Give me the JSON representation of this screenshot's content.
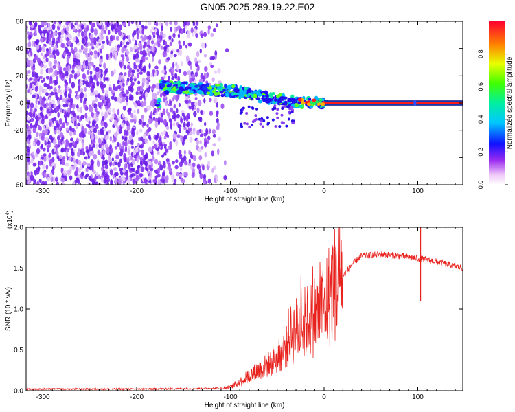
{
  "figure_title": "GN05.2025.289.19.22.E02",
  "chart_data": [
    {
      "type": "heatmap",
      "title": "GN05.2025.289.19.22.E02",
      "xlabel": "Height of straight line (km)",
      "ylabel": "Frequency (Hz)",
      "xlim": [
        -318,
        148
      ],
      "ylim": [
        -60,
        60
      ],
      "x_ticks": [
        -300,
        -200,
        -100,
        0,
        100
      ],
      "x_tick_labels": [
        "-300",
        "-200",
        "-100",
        "0",
        "100"
      ],
      "y_ticks": [
        -60,
        -40,
        -20,
        0,
        20,
        40,
        60
      ],
      "y_tick_labels": [
        "-60",
        "-40",
        "-20",
        "0",
        "20",
        "40",
        "60"
      ],
      "colorbar": {
        "label": "Normalized spectral amplitude",
        "range": [
          0,
          1
        ],
        "ticks": [
          0.0,
          0.2,
          0.4,
          0.6,
          0.8
        ],
        "tick_labels": [
          "0.0",
          "0.2",
          "0.4",
          "0.6",
          "0.8"
        ]
      },
      "ridge_track": [
        {
          "x": -175,
          "y": 12
        },
        {
          "x": -150,
          "y": 11
        },
        {
          "x": -125,
          "y": 10
        },
        {
          "x": -100,
          "y": 9
        },
        {
          "x": -85,
          "y": 8
        },
        {
          "x": -70,
          "y": 5
        },
        {
          "x": -55,
          "y": 3
        },
        {
          "x": -40,
          "y": 1
        },
        {
          "x": -25,
          "y": 1
        },
        {
          "x": -10,
          "y": 1
        },
        {
          "x": 0,
          "y": 0
        },
        {
          "x": 148,
          "y": 0
        }
      ],
      "noise_region_x": [
        -318,
        -110
      ],
      "steady_line": {
        "x_start": 0,
        "x_end": 148,
        "y": 0
      }
    },
    {
      "type": "line",
      "xlabel": "Height of straight line (km)",
      "ylabel": "SNR (10 * v/v)",
      "y_multiplier_label": "(x10",
      "y_multiplier_exponent": "4",
      "xlim": [
        -318,
        148
      ],
      "ylim": [
        0,
        2.0
      ],
      "x_ticks": [
        -300,
        -200,
        -100,
        0,
        100
      ],
      "x_tick_labels": [
        "-300",
        "-200",
        "-100",
        "0",
        "100"
      ],
      "y_ticks": [
        0.0,
        0.5,
        1.0,
        1.5,
        2.0
      ],
      "y_tick_labels": [
        "0.0",
        "0.5",
        "1.0",
        "1.5",
        "2.0"
      ],
      "series": [
        {
          "name": "SNR",
          "color": "#e8231e",
          "x": [
            -318,
            -200,
            -110,
            -100,
            -90,
            -80,
            -70,
            -60,
            -50,
            -40,
            -30,
            -20,
            -10,
            0,
            10,
            20,
            30,
            40,
            60,
            80,
            100,
            110,
            120,
            148
          ],
          "y": [
            0.02,
            0.02,
            0.03,
            0.05,
            0.12,
            0.2,
            0.28,
            0.35,
            0.45,
            0.6,
            0.72,
            0.8,
            0.9,
            1.0,
            1.25,
            1.4,
            1.55,
            1.65,
            1.67,
            1.65,
            1.62,
            1.6,
            1.58,
            1.5
          ]
        }
      ],
      "annotations": [
        {
          "x": 103,
          "y_spike_high": 2.0,
          "y_spike_low": 1.1
        }
      ]
    }
  ]
}
